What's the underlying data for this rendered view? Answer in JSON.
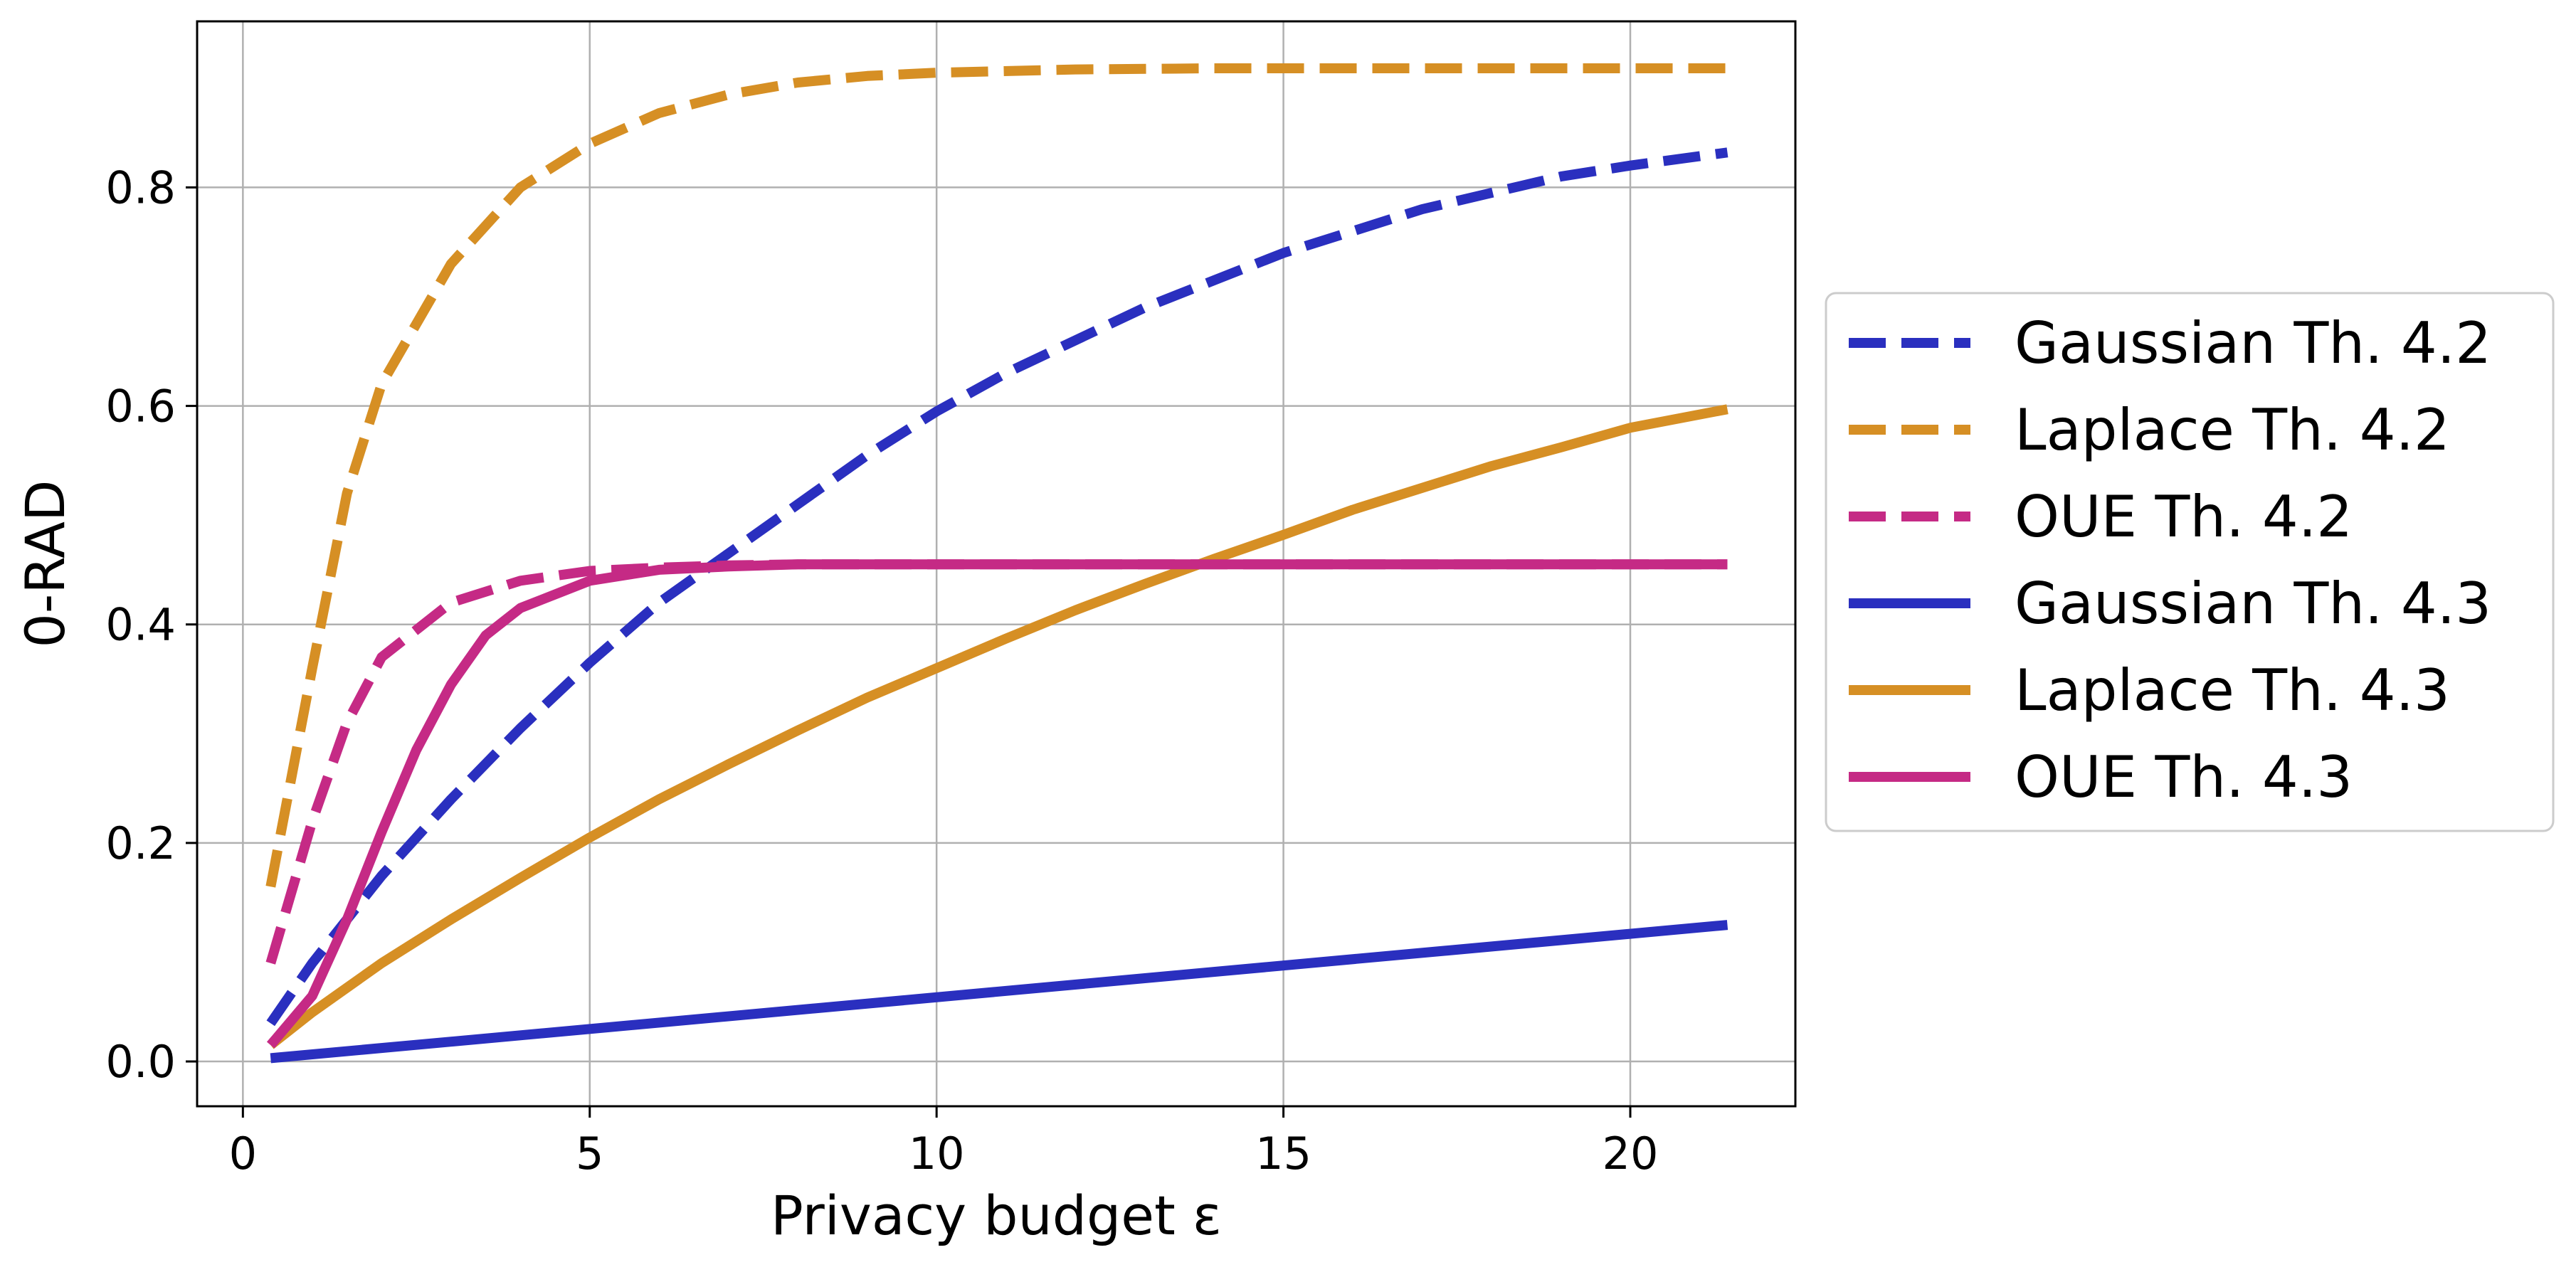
{
  "chart_data": {
    "type": "line",
    "xlabel": "Privacy budget ε",
    "ylabel": "0-RAD",
    "xlim": [
      -0.66,
      22.38
    ],
    "ylim": [
      -0.041,
      0.952
    ],
    "xticks": [
      0,
      5,
      10,
      15,
      20
    ],
    "xtick_labels": [
      "0",
      "5",
      "10",
      "15",
      "20"
    ],
    "yticks": [
      0.0,
      0.2,
      0.4,
      0.6,
      0.8
    ],
    "ytick_labels": [
      "0.0",
      "0.2",
      "0.4",
      "0.6",
      "0.8"
    ],
    "grid": true,
    "legend_position": "outside-right",
    "series": [
      {
        "name": "Gaussian Th. 4.2",
        "color": "#2a2fbf",
        "linestyle": "dashed",
        "x": [
          0.4,
          1,
          2,
          3,
          4,
          5,
          6,
          7,
          8,
          9,
          10,
          11,
          12,
          13,
          14,
          15,
          16,
          17,
          18,
          19,
          20,
          21.4
        ],
        "y": [
          0.035,
          0.09,
          0.17,
          0.24,
          0.305,
          0.365,
          0.42,
          0.465,
          0.51,
          0.555,
          0.595,
          0.63,
          0.66,
          0.69,
          0.715,
          0.74,
          0.76,
          0.78,
          0.795,
          0.81,
          0.82,
          0.832
        ]
      },
      {
        "name": "Laplace Th. 4.2",
        "color": "#d68f24",
        "linestyle": "dashed",
        "x": [
          0.4,
          1,
          1.5,
          2,
          3,
          4,
          5,
          6,
          7,
          8,
          9,
          10,
          12,
          14,
          16,
          18,
          20,
          21.4
        ],
        "y": [
          0.16,
          0.36,
          0.52,
          0.62,
          0.73,
          0.8,
          0.84,
          0.868,
          0.885,
          0.896,
          0.902,
          0.905,
          0.908,
          0.909,
          0.909,
          0.909,
          0.909,
          0.909
        ]
      },
      {
        "name": "OUE Th. 4.2",
        "color": "#c52a85",
        "linestyle": "dashed",
        "x": [
          0.4,
          1,
          1.5,
          2,
          3,
          4,
          5,
          6,
          7,
          8,
          10,
          15,
          20,
          21.4
        ],
        "y": [
          0.09,
          0.22,
          0.31,
          0.37,
          0.42,
          0.44,
          0.449,
          0.452,
          0.454,
          0.455,
          0.455,
          0.455,
          0.455,
          0.455
        ]
      },
      {
        "name": "Gaussian Th. 4.3",
        "color": "#2a2fbf",
        "linestyle": "solid",
        "x": [
          0.4,
          21.4
        ],
        "y": [
          0.003,
          0.125
        ]
      },
      {
        "name": "Laplace Th. 4.3",
        "color": "#d68f24",
        "linestyle": "solid",
        "x": [
          0.4,
          1,
          2,
          3,
          4,
          5,
          6,
          7,
          8,
          9,
          10,
          11,
          12,
          13,
          14,
          15,
          16,
          17,
          18,
          19,
          20,
          21.4
        ],
        "y": [
          0.015,
          0.045,
          0.09,
          0.13,
          0.168,
          0.205,
          0.24,
          0.272,
          0.303,
          0.333,
          0.36,
          0.387,
          0.413,
          0.437,
          0.46,
          0.482,
          0.505,
          0.525,
          0.545,
          0.562,
          0.58,
          0.597
        ]
      },
      {
        "name": "OUE Th. 4.3",
        "color": "#c52a85",
        "linestyle": "solid",
        "x": [
          0.4,
          1,
          1.5,
          2,
          2.5,
          3,
          3.5,
          4,
          5,
          6,
          7,
          8,
          10,
          15,
          20,
          21.4
        ],
        "y": [
          0.015,
          0.06,
          0.13,
          0.21,
          0.285,
          0.345,
          0.39,
          0.415,
          0.44,
          0.45,
          0.453,
          0.455,
          0.455,
          0.455,
          0.455,
          0.455
        ]
      }
    ]
  }
}
